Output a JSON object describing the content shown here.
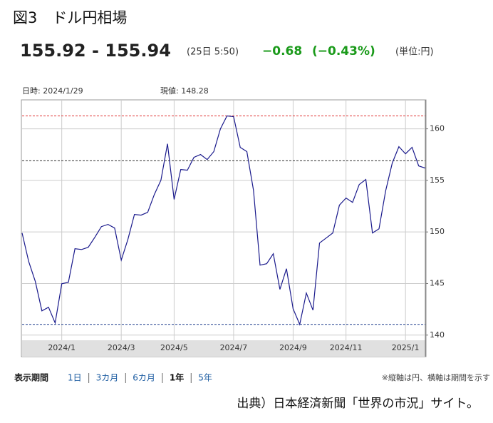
{
  "header": {
    "title": "図3　ドル円相場",
    "price": "155.92 - 155.94",
    "time": "(25日 5:50)",
    "change": "−0.68",
    "change_pct": "(−0.43%)",
    "unit": "(単位:円)"
  },
  "chart_data": {
    "type": "line",
    "info_date": "日時: 2024/1/29",
    "info_value": "現値: 148.28",
    "categories": [
      null,
      null,
      null,
      null,
      null,
      null,
      "2024/1",
      null,
      null,
      null,
      null,
      null,
      null,
      null,
      null,
      "2024/3",
      null,
      null,
      null,
      null,
      null,
      null,
      null,
      "2024/5",
      null,
      null,
      null,
      null,
      null,
      null,
      null,
      null,
      "2024/7",
      null,
      null,
      null,
      null,
      null,
      null,
      null,
      null,
      "2024/9",
      null,
      null,
      null,
      null,
      null,
      null,
      null,
      "2024/11",
      null,
      null,
      null,
      null,
      null,
      null,
      null,
      null,
      "2025/1",
      null,
      null,
      null
    ],
    "values": [
      149.9,
      147.13,
      145.19,
      142.35,
      142.7,
      141.18,
      144.98,
      145.12,
      148.37,
      148.3,
      148.51,
      149.48,
      150.52,
      150.73,
      150.38,
      147.27,
      149.27,
      151.7,
      151.63,
      151.9,
      153.63,
      155.02,
      158.55,
      153.15,
      156.06,
      155.99,
      157.23,
      157.51,
      157.02,
      157.79,
      160.0,
      161.25,
      161.18,
      158.2,
      157.79,
      154.05,
      146.78,
      146.92,
      147.89,
      144.43,
      146.44,
      142.56,
      141.04,
      144.08,
      142.42,
      148.93,
      149.41,
      149.9,
      152.6,
      153.29,
      152.87,
      154.6,
      155.09,
      149.9,
      150.31,
      153.98,
      156.68,
      158.27,
      157.58,
      158.2,
      156.4,
      156.19
    ],
    "color": "#1a1a8c",
    "ylim": [
      139.5,
      162.6
    ],
    "yticks": [
      140,
      145,
      150,
      155,
      160
    ],
    "grid": true,
    "reference_lines": [
      {
        "value": 161.25,
        "color": "#e03030"
      },
      {
        "value": 156.9,
        "color": "#333333"
      },
      {
        "value": 141.04,
        "color": "#1a3a8c"
      }
    ]
  },
  "footer": {
    "period_label": "表示期間",
    "periods": [
      "1日",
      "3カ月",
      "6カ月",
      "1年",
      "5年"
    ],
    "active_period": 3,
    "note": "※縦軸は円、横軸は期間を示す",
    "source": "出典）日本経済新聞「世界の市況」サイト。"
  }
}
